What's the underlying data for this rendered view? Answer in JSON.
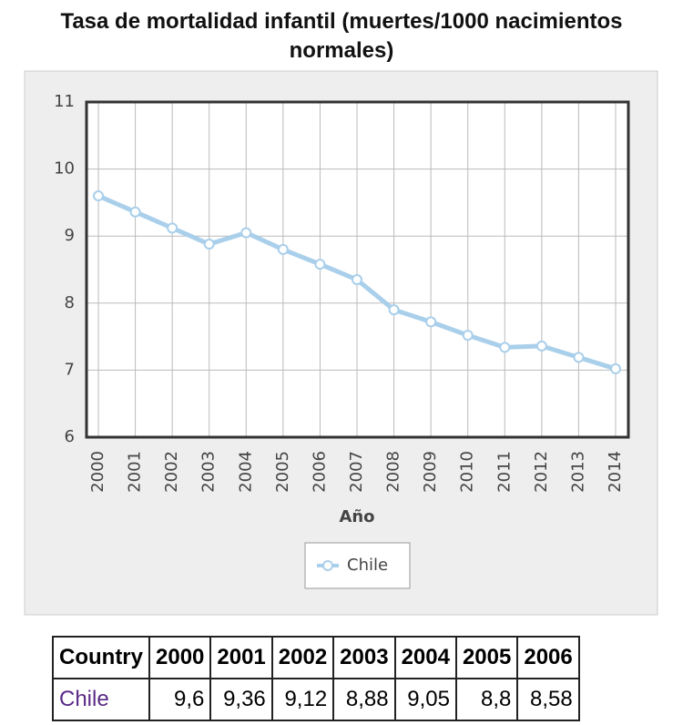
{
  "chart_data": {
    "type": "line",
    "title": "Tasa de mortalidad infantil (muertes/1000 nacimientos normales)",
    "x_label": "Año",
    "categories": [
      "2000",
      "2001",
      "2002",
      "2003",
      "2004",
      "2005",
      "2006",
      "2007",
      "2008",
      "2009",
      "2010",
      "2011",
      "2012",
      "2013",
      "2014"
    ],
    "series": [
      {
        "name": "Chile",
        "color": "#a9cfeb",
        "values": [
          9.6,
          9.36,
          9.12,
          8.88,
          9.05,
          8.8,
          8.58,
          8.35,
          7.9,
          7.72,
          7.52,
          7.34,
          7.36,
          7.19,
          7.02
        ]
      }
    ],
    "ylim": [
      6,
      11
    ],
    "yticks": [
      6,
      7,
      8,
      9,
      10,
      11
    ],
    "grid": true,
    "legend": "bottom"
  },
  "table": {
    "header": [
      "Country",
      "2000",
      "2001",
      "2002",
      "2003",
      "2004",
      "2005",
      "2006"
    ],
    "rows": [
      [
        "Chile",
        "9,6",
        "9,36",
        "9,12",
        "8,88",
        "9,05",
        "8,8",
        "8,58"
      ]
    ]
  }
}
